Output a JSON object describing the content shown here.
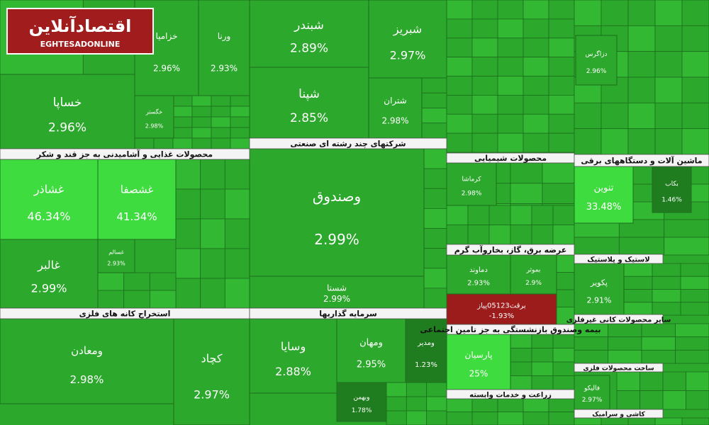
{
  "logo": {
    "name": "اقتصادآنلاین",
    "latin": "EGHTESADONLINE"
  },
  "chart_data": {
    "type": "treemap",
    "sectors": [
      "محصولات غذایی و آشامیدنی به جز قند و شکر",
      "استخراج کانه های فلزی",
      "شرکتهای چند رشته ای صنعتی",
      "سرمایه گذاریها",
      "محصولات شیمیایی",
      "عرضه برق، گاز، بخاروآب گرم",
      "بیمه وصندوق بازنشستگی به جز تامین اجتماعی",
      "زراعت و خدمات وابسته",
      "ماشین آلات و دستگاههای برقی",
      "لاستیک و پلاستیک",
      "سایر محصولات کانی غیرفلزی",
      "ساخت محصولات فلزی",
      "کاشی و سرامیک"
    ],
    "tiles": [
      {
        "name": "خزامیا",
        "value": 2.96,
        "value_label": "2.96%",
        "color": "#2ca82c"
      },
      {
        "name": "ورنا",
        "value": 2.93,
        "value_label": "2.93%",
        "color": "#2ca82c"
      },
      {
        "name": "خساپا",
        "value": 2.96,
        "value_label": "2.96%",
        "color": "#2ca82c"
      },
      {
        "name": "خگستر",
        "value": 2.98,
        "value_label": "2.98%",
        "color": "#2ca82c"
      },
      {
        "name": "غشاذر",
        "value": 46.34,
        "value_label": "46.34%",
        "color": "#3fdc3f"
      },
      {
        "name": "غشصفا",
        "value": 41.34,
        "value_label": "41.34%",
        "color": "#3fdc3f"
      },
      {
        "name": "غالبر",
        "value": 2.99,
        "value_label": "2.99%",
        "color": "#2ca82c"
      },
      {
        "name": "غسالم",
        "value": 2.93,
        "value_label": "2.93%",
        "color": "#2ca82c"
      },
      {
        "name": "ومعادن",
        "value": 2.98,
        "value_label": "2.98%",
        "color": "#2ca82c"
      },
      {
        "name": "کچاد",
        "value": 2.97,
        "value_label": "2.97%",
        "color": "#2ca82c"
      },
      {
        "name": "شبندر",
        "value": 2.89,
        "value_label": "2.89%",
        "color": "#2ca82c"
      },
      {
        "name": "شبریز",
        "value": 2.97,
        "value_label": "2.97%",
        "color": "#2ca82c"
      },
      {
        "name": "شپنا",
        "value": 2.85,
        "value_label": "2.85%",
        "color": "#2ca82c"
      },
      {
        "name": "شتران",
        "value": 2.98,
        "value_label": "2.98%",
        "color": "#2ca82c"
      },
      {
        "name": "وصندوق",
        "value": 2.99,
        "value_label": "2.99%",
        "color": "#2ca82c"
      },
      {
        "name": "شستا",
        "value": 2.99,
        "value_label": "2.99%",
        "color": "#2ca82c"
      },
      {
        "name": "وسایا",
        "value": 2.88,
        "value_label": "2.88%",
        "color": "#2ca82c"
      },
      {
        "name": "ومهان",
        "value": 2.95,
        "value_label": "2.95%",
        "color": "#2ca82c"
      },
      {
        "name": "ومدیر",
        "value": 1.23,
        "value_label": "1.23%",
        "color": "#1f7d1f"
      },
      {
        "name": "وبهمن",
        "value": 1.78,
        "value_label": "1.78%",
        "color": "#1f7d1f"
      },
      {
        "name": "کرماشا",
        "value": 2.98,
        "value_label": "2.98%",
        "color": "#2ca82c"
      },
      {
        "name": "دماوند",
        "value": 2.93,
        "value_label": "2.93%",
        "color": "#2ca82c"
      },
      {
        "name": "بموثر",
        "value": 2.9,
        "value_label": "2.9%",
        "color": "#2ca82c"
      },
      {
        "name": "برقت05123پیاز",
        "value": -1.93,
        "value_label": "-1.93%",
        "color": "#9c1b1b"
      },
      {
        "name": "پارسیان",
        "value": 25,
        "value_label": "25%",
        "color": "#3fdc3f"
      },
      {
        "name": "تنوین",
        "value": 33.48,
        "value_label": "33.48%",
        "color": "#3fdc3f"
      },
      {
        "name": "بکاب",
        "value": 1.46,
        "value_label": "1.46%",
        "color": "#1f7d1f"
      },
      {
        "name": "پکویر",
        "value": 2.91,
        "value_label": "2.91%",
        "color": "#2ca82c"
      },
      {
        "name": "دزاگرس",
        "value": 2.96,
        "value_label": "2.96%",
        "color": "#2ca82c"
      },
      {
        "name": "فالیکو",
        "value": 2.97,
        "value_label": "2.97%",
        "color": "#2ca82c"
      }
    ]
  }
}
